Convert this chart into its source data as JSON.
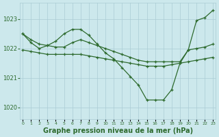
{
  "title": "Graphe pression niveau de la mer (hPa)",
  "hours": [
    0,
    1,
    2,
    3,
    4,
    5,
    6,
    7,
    8,
    9,
    10,
    11,
    12,
    13,
    14,
    15,
    16,
    17,
    18,
    19,
    20,
    21,
    22,
    23
  ],
  "line_jagged": [
    1022.5,
    1022.2,
    1022.0,
    1022.1,
    1022.25,
    1022.5,
    1022.65,
    1022.65,
    1022.45,
    1022.15,
    1021.85,
    1021.65,
    1021.35,
    1021.05,
    1020.75,
    1020.25,
    1020.25,
    1020.25,
    1020.6,
    1021.5,
    1021.95,
    1022.95,
    1023.05,
    1023.3
  ],
  "line_diagonal": [
    1022.5,
    1022.3,
    1022.15,
    1022.1,
    1022.05,
    1022.05,
    1022.2,
    1022.3,
    1022.2,
    1022.1,
    1022.0,
    1021.9,
    1021.8,
    1021.7,
    1021.6,
    1021.55,
    1021.55,
    1021.55,
    1021.55,
    1021.55,
    1021.95,
    1022.0,
    1022.05,
    1022.15
  ],
  "line_flat": [
    1021.95,
    1021.9,
    1021.85,
    1021.8,
    1021.8,
    1021.8,
    1021.8,
    1021.8,
    1021.75,
    1021.7,
    1021.65,
    1021.6,
    1021.55,
    1021.5,
    1021.45,
    1021.4,
    1021.4,
    1021.4,
    1021.45,
    1021.5,
    1021.55,
    1021.6,
    1021.65,
    1021.7
  ],
  "line_color": "#2d6a2d",
  "bg_color": "#cce8ec",
  "grid_color": "#aaccd4",
  "ylim": [
    1019.6,
    1023.55
  ],
  "yticks": [
    1020,
    1021,
    1022,
    1023
  ],
  "title_fontsize": 7,
  "marker": "+",
  "marker_size": 3,
  "lw": 0.9
}
